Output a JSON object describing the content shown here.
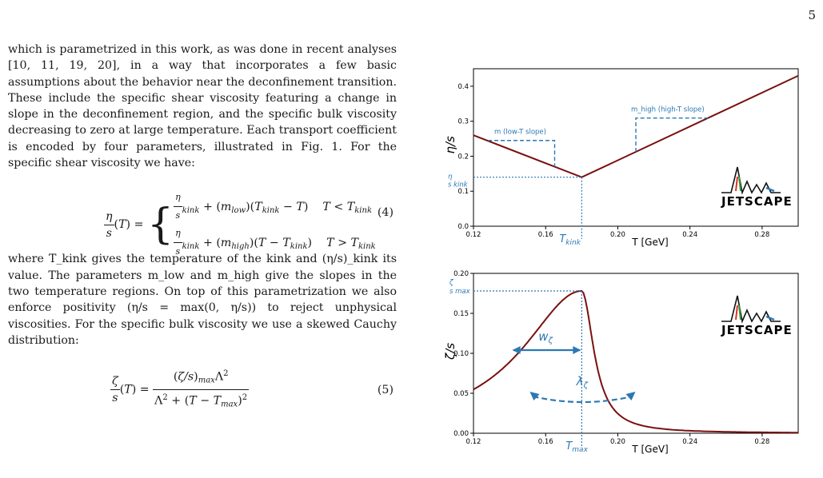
{
  "page_number": "5",
  "paragraph1": "which is parametrized in this work, as was done in recent analyses [10, 11, 19, 20], in a way that incorporates a few basic assumptions about the behavior near the deconfinement transition. These include the specific shear viscosity featuring a change in slope in the deconfinement region, and the specific bulk viscosity decreasing to zero at large temperature. Each transport coefficient is encoded by four parameters, illustrated in Fig. 1. For the specific shear viscosity we have:",
  "equation4": {
    "number": "(4)"
  },
  "paragraph2": "where T_kink gives the temperature of the kink and (η/s)_kink its value. The parameters m_low and m_high give the slopes in the two temperature regions. On top of this parametrization we also enforce positivity (η/s = max(0, η/s)) to reject unphysical viscosities. For the specific bulk viscosity we use a skewed Cauchy distribution:",
  "equation5": {
    "number": "(5)"
  },
  "colors": {
    "curve": "#7a1010",
    "annotation": "#2a78b4",
    "axis": "#000000"
  },
  "chart_data": [
    {
      "type": "line",
      "title": "",
      "xlabel": "T [GeV]",
      "ylabel": "η/s",
      "xlim": [
        0.12,
        0.3
      ],
      "ylim": [
        0.0,
        0.45
      ],
      "xticks": [
        "0.12",
        "0.16",
        "0.20",
        "0.24",
        "0.28"
      ],
      "yticks": [
        "0.0",
        "0.1",
        "0.2",
        "0.3",
        "0.4"
      ],
      "x": [
        0.12,
        0.18,
        0.3
      ],
      "y": [
        0.26,
        0.14,
        0.43
      ],
      "annotations": {
        "kink_x_label": "T_kink",
        "kink_y_label": "η/s kink",
        "low_slope_label": "m_low (low-T slope)",
        "high_slope_label": "m_high (high-T slope)"
      },
      "logo": "JETSCAPE"
    },
    {
      "type": "line",
      "title": "",
      "xlabel": "T [GeV]",
      "ylabel": "ζ/s",
      "xlim": [
        0.12,
        0.3
      ],
      "ylim": [
        0.0,
        0.2
      ],
      "xticks": [
        "0.12",
        "0.16",
        "0.20",
        "0.24",
        "0.28"
      ],
      "yticks": [
        "0.00",
        "0.05",
        "0.10",
        "0.15",
        "0.20"
      ],
      "model": {
        "max": 0.178,
        "t_max": 0.18,
        "width_low": 0.04,
        "width_high": 0.008
      },
      "annotations": {
        "tmax_label": "T_max",
        "max_label": "ζ/s max",
        "width_label": "w_ζ",
        "skew_label": "λ_ζ"
      },
      "logo": "JETSCAPE"
    }
  ]
}
